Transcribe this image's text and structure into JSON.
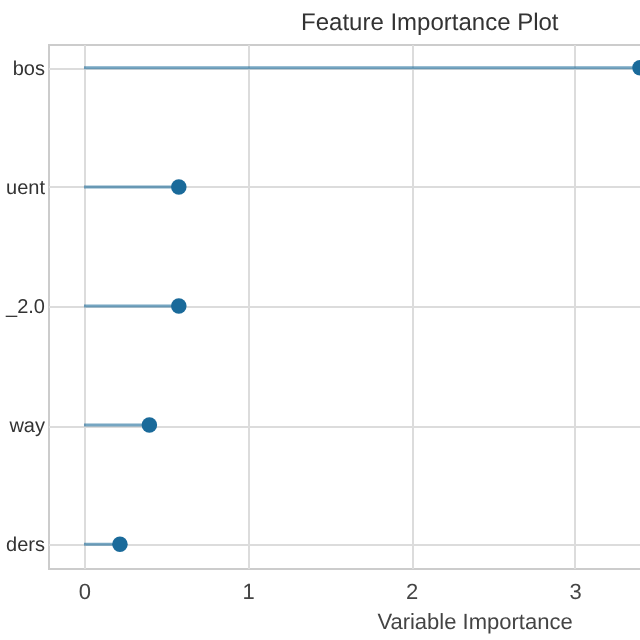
{
  "chart_data": {
    "type": "lollipop",
    "title": "Feature Importance Plot",
    "xlabel": "Variable Importance",
    "orientation": "horizontal",
    "categories": [
      "bos",
      "uent",
      "_2.0",
      "way",
      "ders"
    ],
    "series": [
      {
        "color": "#1a6a9a",
        "values": [
          3.4,
          0.58,
          0.58,
          0.4,
          0.22
        ]
      }
    ],
    "xlim": [
      -0.22,
      3.4
    ],
    "xticks": [
      0,
      1,
      2,
      3
    ],
    "grid": true,
    "marker": "circle"
  }
}
